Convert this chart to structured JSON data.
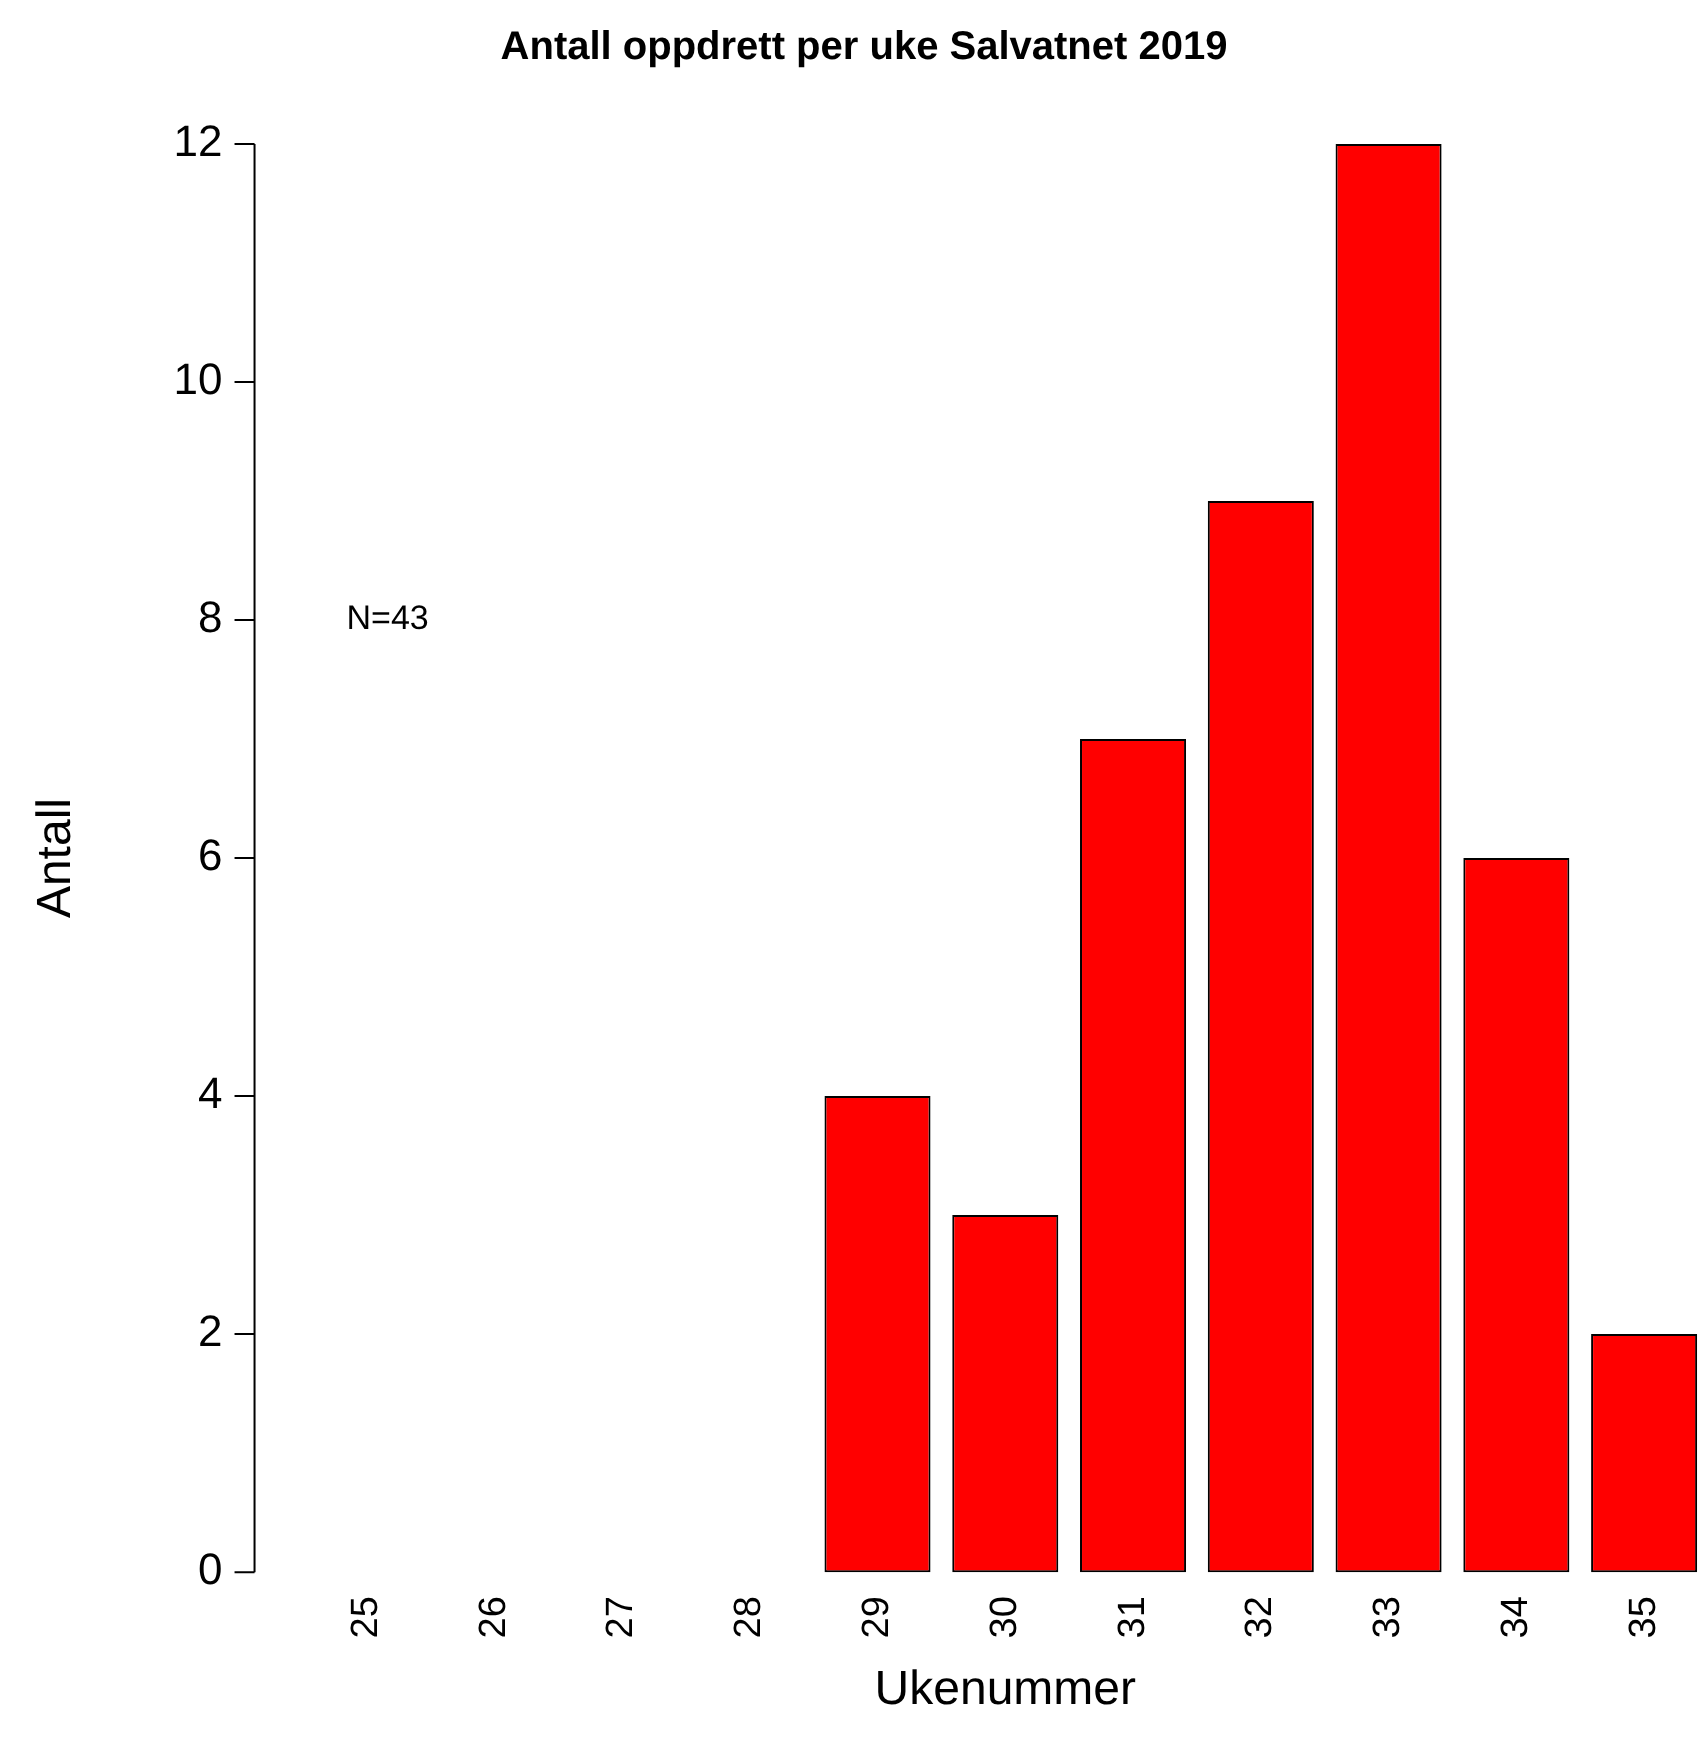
{
  "chart_data": {
    "type": "bar",
    "title": "Antall oppdrett per uke Salvatnet 2019",
    "xlabel": "Ukenummer",
    "ylabel": "Antall",
    "categories": [
      "25",
      "26",
      "27",
      "28",
      "29",
      "30",
      "31",
      "32",
      "33",
      "34",
      "35"
    ],
    "values": [
      0,
      0,
      0,
      0,
      4,
      3,
      7,
      9,
      12,
      6,
      2
    ],
    "color": "#ff0000",
    "ylim": [
      0,
      12
    ],
    "yticks": [
      0,
      2,
      4,
      6,
      8,
      10,
      12
    ],
    "grid": false,
    "legend": false,
    "annotations": [
      "N=43"
    ]
  }
}
